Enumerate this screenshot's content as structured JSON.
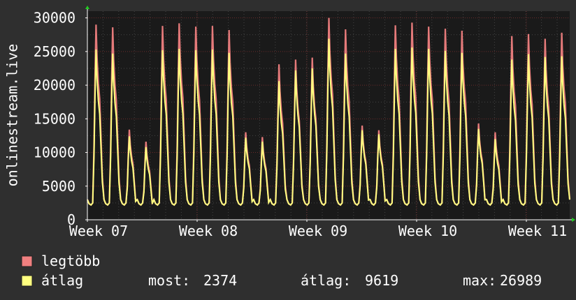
{
  "chart_data": {
    "type": "area",
    "title": "",
    "ylabel": "onlinestream.live",
    "ylim": [
      0,
      31000
    ],
    "y_ticks": [
      0,
      5000,
      10000,
      15000,
      20000,
      25000,
      30000
    ],
    "x_ticks": [
      "Week 07",
      "Week 08",
      "Week 09",
      "Week 10",
      "Week 11"
    ],
    "grid": true,
    "days": 29,
    "daily_max": [
      29000,
      28600,
      13400,
      11600,
      28800,
      29200,
      28700,
      28800,
      28200,
      13000,
      12300,
      23100,
      23800,
      24100,
      30000,
      28300,
      14000,
      13300,
      28900,
      29300,
      28700,
      28400,
      28100,
      14300,
      13000,
      27300,
      27600,
      26900,
      27800
    ],
    "daily_avg": [
      25300,
      24700,
      12400,
      10800,
      25200,
      25400,
      25200,
      25300,
      24800,
      12200,
      11600,
      20600,
      22200,
      22500,
      26900,
      24700,
      13300,
      12700,
      25400,
      25600,
      25400,
      25100,
      24800,
      13500,
      12000,
      23800,
      24600,
      24200,
      24300
    ],
    "night_min": 2200,
    "series": [
      {
        "name": "legtöbb",
        "color": "#f08080"
      },
      {
        "name": "átlag",
        "color": "#ffff80"
      }
    ],
    "legend_position": "bottom-left",
    "stats": {
      "now_label": "most:",
      "now_value": "2374",
      "avg_label": "átlag:",
      "avg_value": "9619",
      "max_label": "max:",
      "max_value": "26989"
    }
  }
}
